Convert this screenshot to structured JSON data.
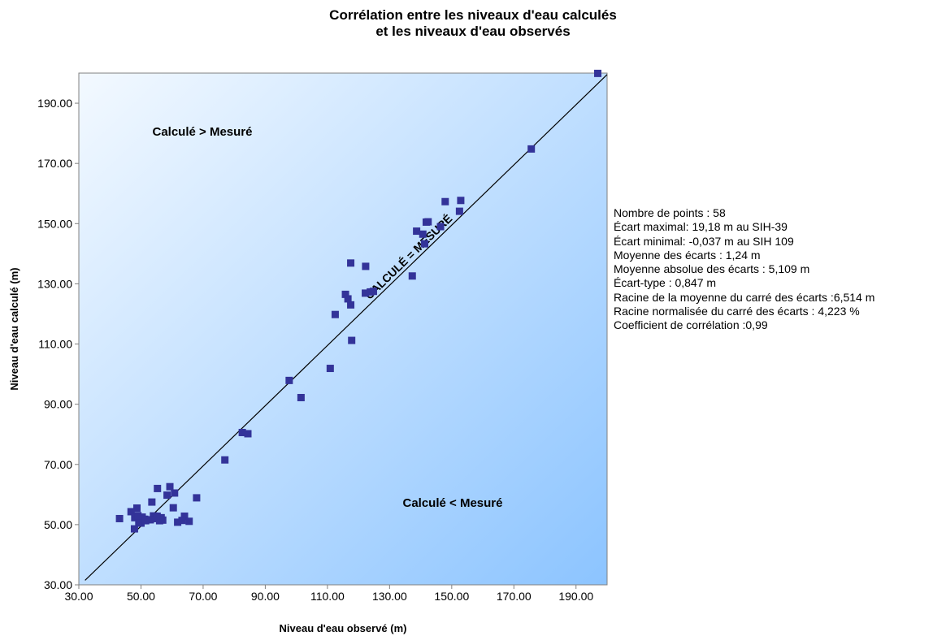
{
  "title_line1": "Corrélation entre les niveaux d'eau calculés",
  "title_line2": "et les niveaux d'eau observés",
  "chart_data": {
    "type": "scatter",
    "xlabel": "Niveau  d'eau observé (m)",
    "ylabel": "Niveau  d'eau calculé (m)",
    "xlim": [
      30,
      200
    ],
    "ylim": [
      30,
      200
    ],
    "x_ticks": [
      "30.00",
      "50.00",
      "70.00",
      "90.00",
      "110.00",
      "130.00",
      "150.00",
      "170.00",
      "190.00"
    ],
    "y_ticks": [
      "30.00",
      "50.00",
      "70.00",
      "90.00",
      "110.00",
      "130.00",
      "150.00",
      "170.00",
      "190.00"
    ],
    "grid": false,
    "reference_line": {
      "type": "y=x",
      "label": "CALCULÉ = MESURÉ"
    },
    "annotations": {
      "upper_region": "Calculé > Mesuré",
      "lower_region": "Calculé < Mesuré"
    },
    "series": [
      {
        "marker": "square",
        "x": [
          197.0,
          175.6,
          147.9,
          152.9,
          152.5,
          146.4,
          141.8,
          142.4,
          138.7,
          140.7,
          141.3,
          117.5,
          122.3,
          137.3,
          115.8,
          116.6,
          117.5,
          123.8,
          124.8,
          122.2,
          112.5,
          117.8,
          110.9,
          97.7,
          101.5,
          82.6,
          84.4,
          77.0,
          59.3,
          55.3,
          58.4,
          60.8,
          67.9,
          53.5,
          48.7,
          46.8,
          43.1,
          48.0,
          50.4,
          51.2,
          52.0,
          54.0,
          55.0,
          56.5,
          57.0,
          60.4,
          61.8,
          63.2,
          64.0,
          65.5,
          47.9,
          49.3,
          50.0,
          51.5,
          55.2,
          56.0,
          53.0,
          49.0
        ],
        "y": [
          199.9,
          174.8,
          157.3,
          157.7,
          154.1,
          149.0,
          150.5,
          150.6,
          147.5,
          146.5,
          143.3,
          136.9,
          135.8,
          132.6,
          126.5,
          125.0,
          123.0,
          127.3,
          127.5,
          126.9,
          119.8,
          111.2,
          101.9,
          97.9,
          92.2,
          80.6,
          80.2,
          71.5,
          62.6,
          62.0,
          59.8,
          60.5,
          58.9,
          57.5,
          55.5,
          54.3,
          52.0,
          52.3,
          52.5,
          51.8,
          51.6,
          52.9,
          52.0,
          52.3,
          51.5,
          55.6,
          50.8,
          51.4,
          52.8,
          51.1,
          48.6,
          50.9,
          50.5,
          51.3,
          52.8,
          51.3,
          51.6,
          53.0
        ]
      }
    ],
    "colors": {
      "marker": "#333399",
      "bg_light": "#f3f9ff",
      "bg_dark": "#8cc4ff",
      "line": "#000000"
    }
  },
  "stats": [
    "Nombre de points : 58",
    "Écart maximal: 19,18  m au  SIH-39",
    "Écart minimal: -0,037  m au SIH 109",
    "Moyenne des écarts : 1,24  m",
    "Moyenne absolue des écarts : 5,109  m",
    "Écart-type : 0,847  m",
    "Racine de la moyenne du carré des écarts :6,514  m",
    "Racine normalisée du carré des écarts : 4,223  %",
    "Coefficient  de corrélation :0,99"
  ]
}
